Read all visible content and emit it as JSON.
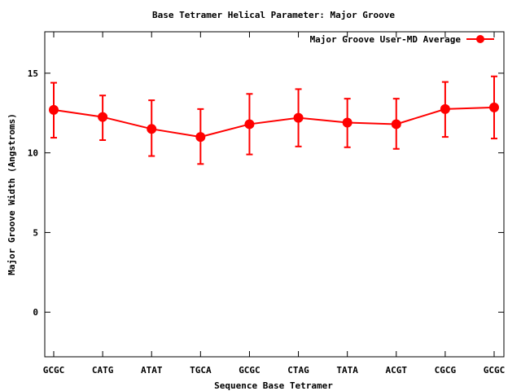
{
  "chart_data": {
    "type": "line",
    "title": "Base Tetramer Helical Parameter: Major Groove",
    "xlabel": "Sequence Base Tetramer",
    "ylabel": "Major Groove Width (Angstroms)",
    "categories": [
      "GCGC",
      "CATG",
      "ATAT",
      "TGCA",
      "GCGC",
      "CTAG",
      "TATA",
      "ACGT",
      "CGCG",
      "GCGC"
    ],
    "series": [
      {
        "name": "Major Groove User-MD Average",
        "color": "#ff0000",
        "values": [
          12.7,
          12.25,
          11.5,
          11.0,
          11.8,
          12.2,
          11.9,
          11.8,
          12.75,
          12.85
        ],
        "err_low": [
          10.95,
          10.8,
          9.8,
          9.3,
          9.9,
          10.4,
          10.35,
          10.25,
          11.0,
          10.9
        ],
        "err_high": [
          14.4,
          13.6,
          13.3,
          12.75,
          13.7,
          14.0,
          13.4,
          13.4,
          14.45,
          14.8
        ]
      }
    ],
    "ylim": [
      -2.8,
      17.6
    ],
    "yticks": [
      0,
      5,
      10,
      15
    ],
    "grid": false,
    "legend_position": "top-right"
  }
}
